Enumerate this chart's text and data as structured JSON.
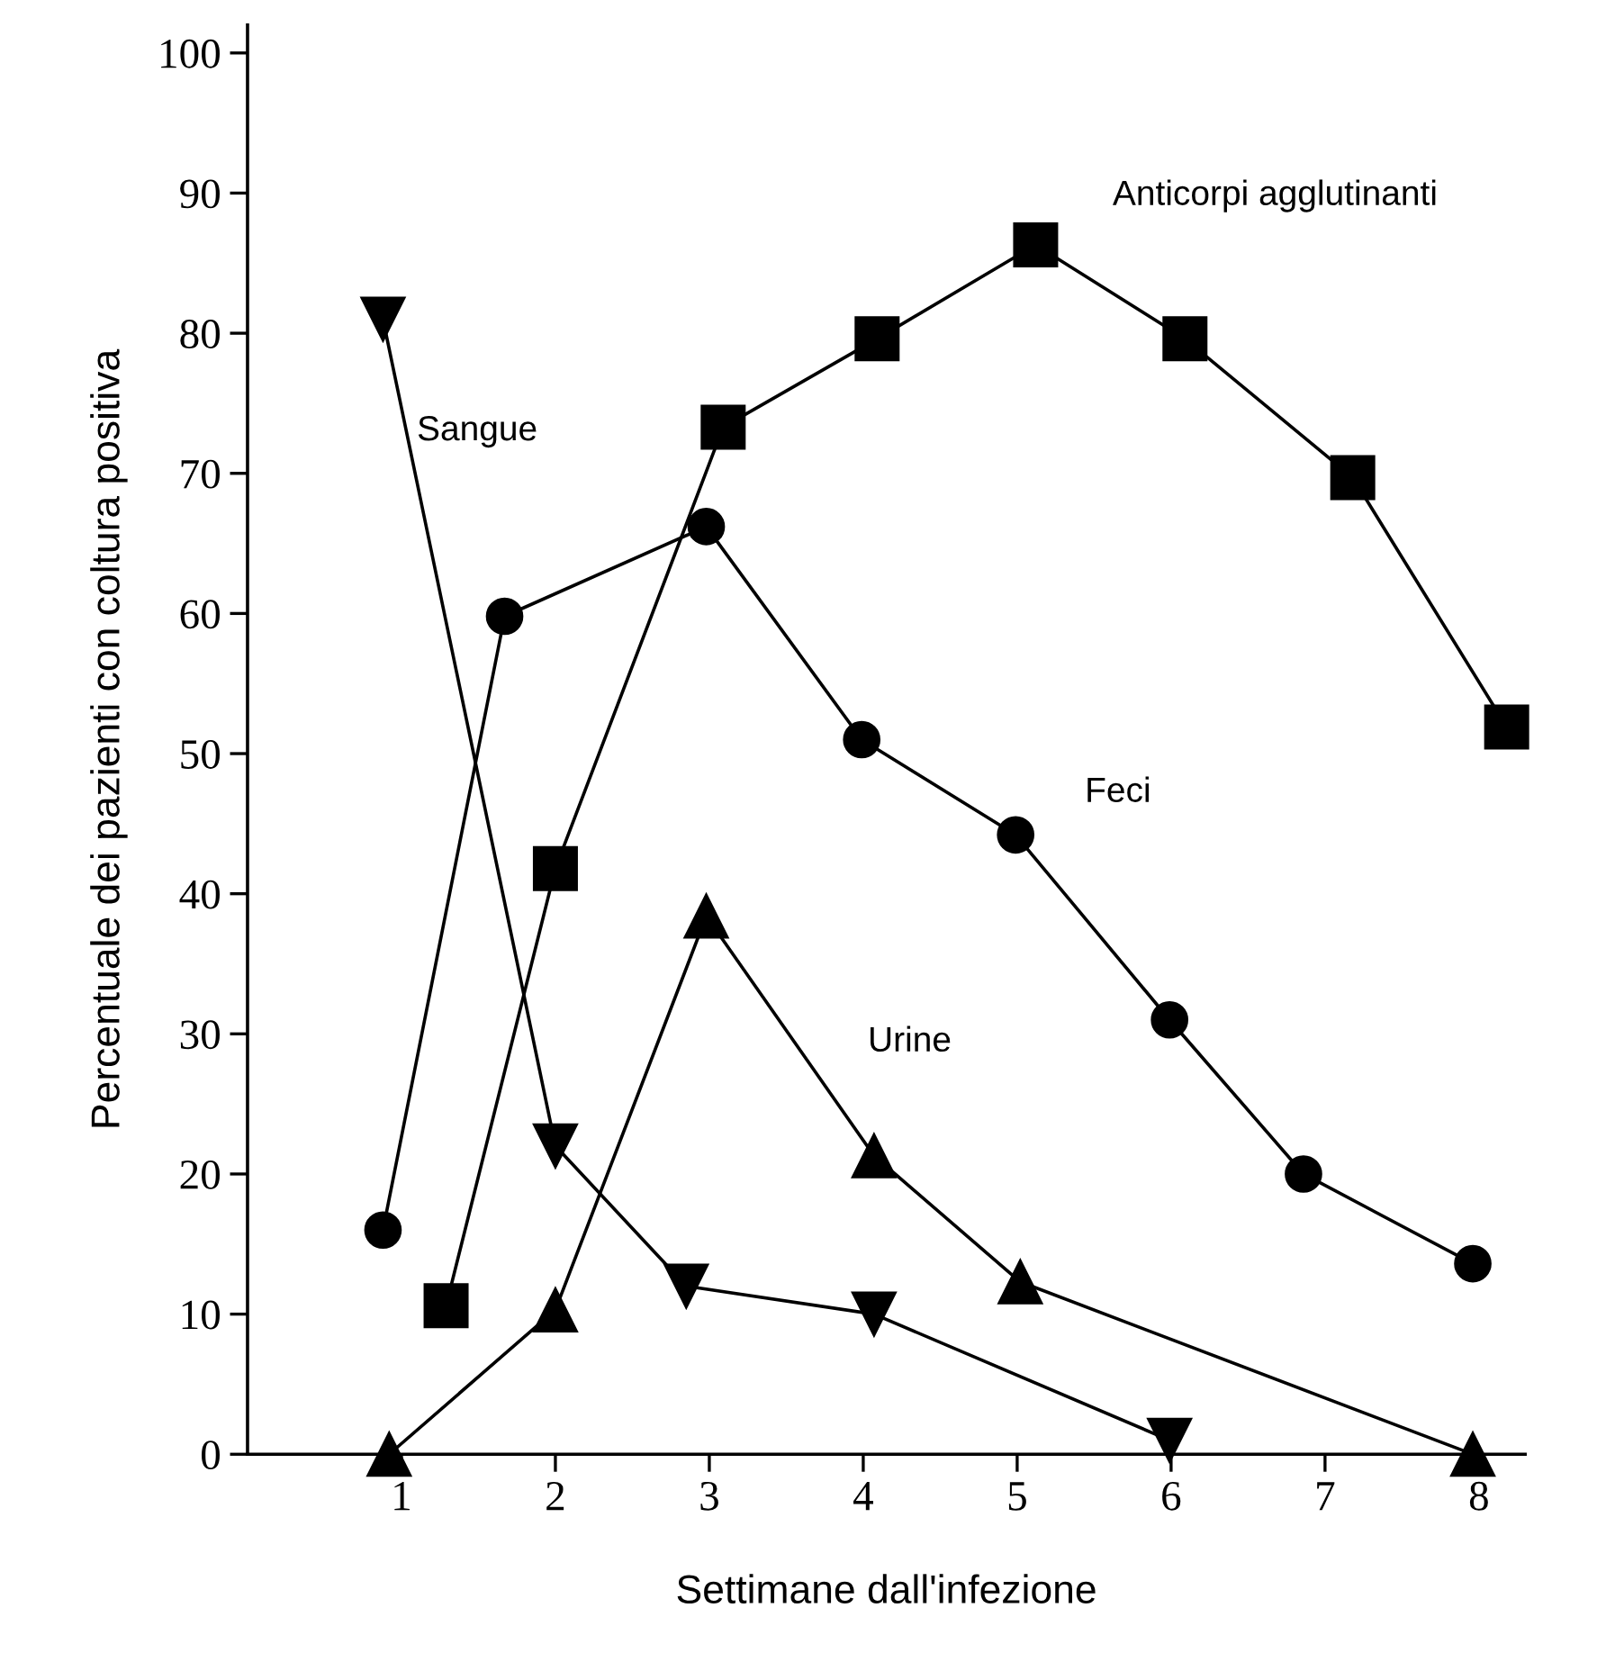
{
  "chart_data": {
    "type": "line",
    "xlabel": "Settimane dall'infezione",
    "ylabel": "Percentuale dei pazienti con coltura positiva",
    "xlim": [
      0,
      8.3
    ],
    "ylim": [
      0,
      102
    ],
    "xticks": [
      1,
      2,
      3,
      4,
      5,
      6,
      7,
      8
    ],
    "yticks": [
      0,
      10,
      20,
      30,
      40,
      50,
      60,
      70,
      80,
      90,
      100
    ],
    "grid": false,
    "legend": false,
    "line_style": "solid",
    "series": [
      {
        "name": "Sangue",
        "color": "#000000",
        "marker": "triangle_down",
        "x": [
          0.88,
          2.0,
          2.85,
          4.07,
          5.99
        ],
        "values": [
          81,
          22,
          12,
          10,
          1
        ]
      },
      {
        "name": "Anticorpi agglutinanti",
        "color": "#000000",
        "marker": "square",
        "x": [
          1.29,
          2.0,
          3.09,
          4.09,
          5.12,
          6.09,
          7.18,
          8.18
        ],
        "values": [
          10.6,
          41.8,
          73.3,
          79.6,
          86.3,
          79.6,
          69.7,
          51.9
        ]
      },
      {
        "name": "Feci",
        "color": "#000000",
        "marker": "circle",
        "x": [
          0.88,
          1.67,
          2.98,
          3.99,
          4.99,
          5.99,
          6.86,
          7.96
        ],
        "values": [
          16,
          59.8,
          66.2,
          51,
          44.2,
          31,
          20,
          13.6
        ]
      },
      {
        "name": "Urine",
        "color": "#000000",
        "marker": "triangle",
        "x": [
          0.92,
          2.0,
          2.98,
          4.07,
          5.02,
          7.96
        ],
        "values": [
          0,
          10.3,
          38.4,
          21.3,
          12.3,
          0
        ]
      }
    ]
  }
}
